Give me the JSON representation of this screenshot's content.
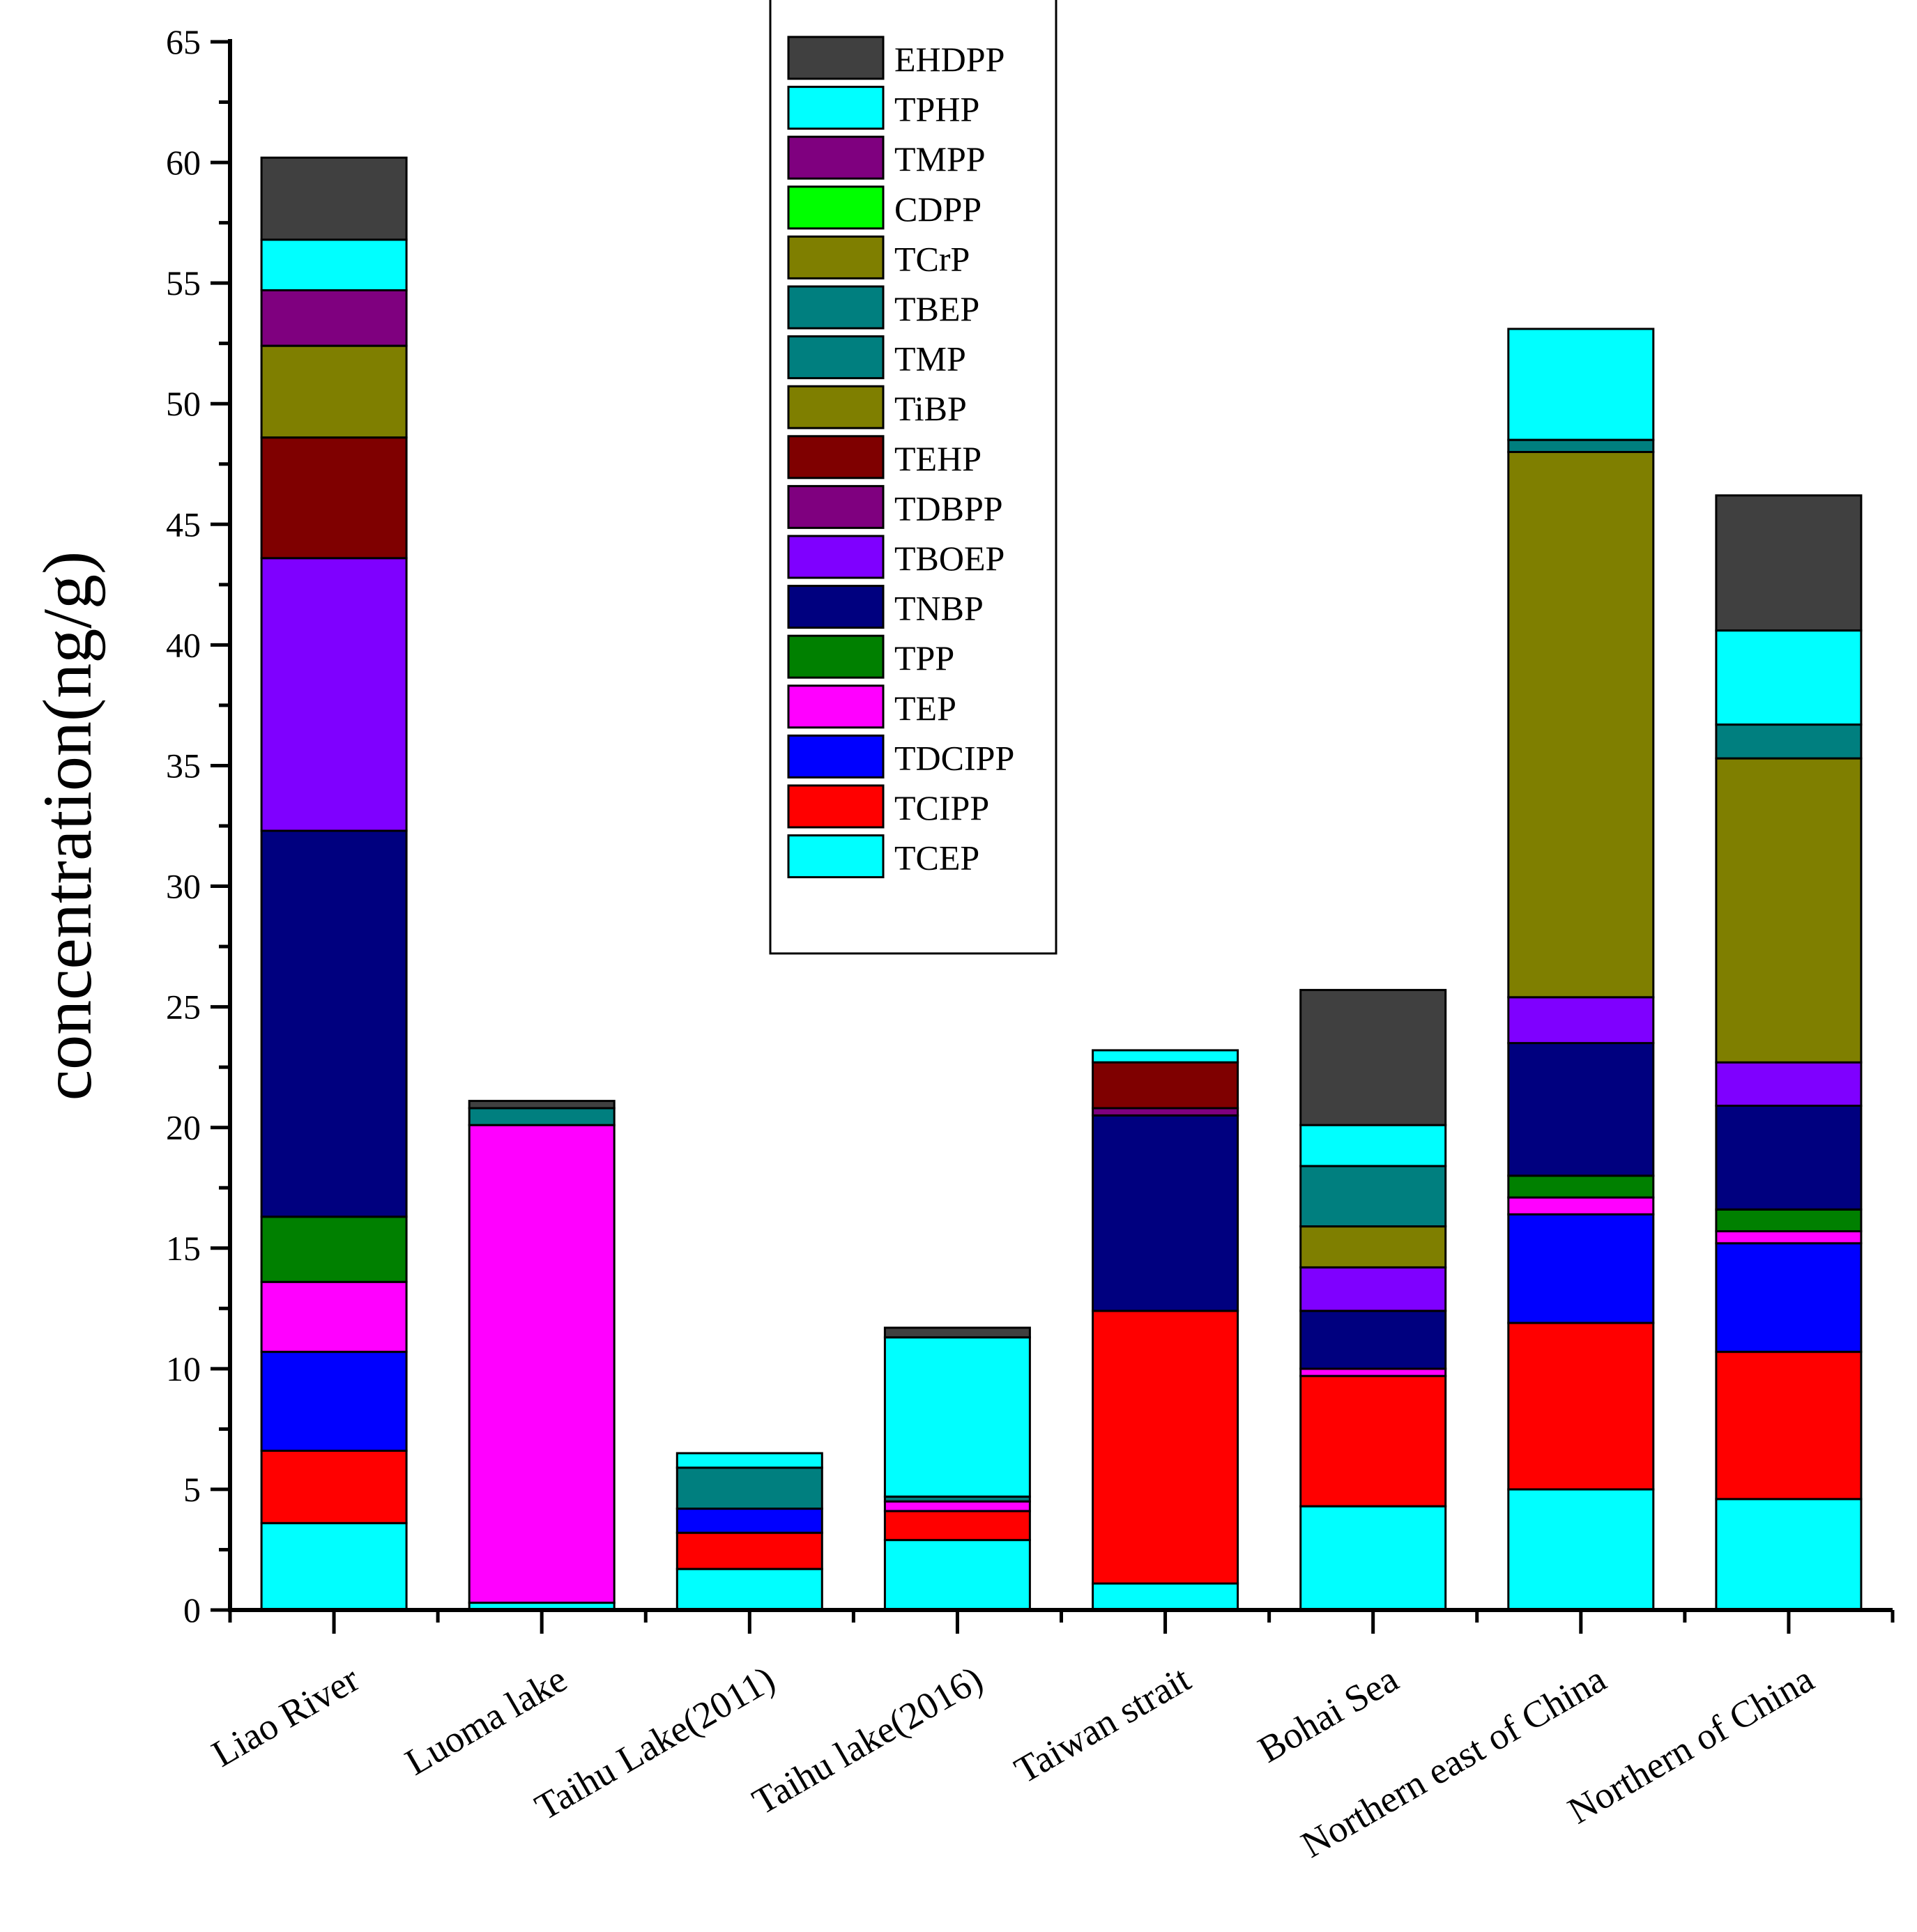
{
  "chart_data": {
    "type": "bar",
    "stacked": true,
    "title": "",
    "xlabel": "",
    "ylabel": "concentration(ng/g)",
    "ylim": [
      0,
      65
    ],
    "yticks": [
      "0",
      "5",
      "10",
      "15",
      "20",
      "25",
      "30",
      "35",
      "40",
      "45",
      "50",
      "55",
      "60",
      "65"
    ],
    "grid": false,
    "legend_position": "top-center",
    "categories": [
      "Liao River",
      "Luoma lake",
      "Taihu Lake(2011)",
      "Taihu lake(2016)",
      "Taiwan strait",
      "Bohai Sea",
      "Northern east of China",
      "Northern of China"
    ],
    "series": [
      {
        "name": "TCEP",
        "color": "#00FFFF",
        "values": [
          3.6,
          0.3,
          1.7,
          2.9,
          1.1,
          4.3,
          5.0,
          4.6
        ]
      },
      {
        "name": "TCIPP",
        "color": "#FF0000",
        "values": [
          3.0,
          0.0,
          1.5,
          1.2,
          11.3,
          5.4,
          6.9,
          6.1
        ]
      },
      {
        "name": "TDCIPP",
        "color": "#0000FF",
        "values": [
          4.1,
          0.0,
          1.0,
          0.0,
          0.0,
          0.0,
          4.5,
          4.5
        ]
      },
      {
        "name": "TEP",
        "color": "#FF00FF",
        "values": [
          2.9,
          19.8,
          0.0,
          0.4,
          0.0,
          0.3,
          0.7,
          0.5
        ]
      },
      {
        "name": "TPP",
        "color": "#008000",
        "values": [
          2.7,
          0.0,
          0.0,
          0.0,
          0.0,
          0.0,
          0.9,
          0.9
        ]
      },
      {
        "name": "TNBP",
        "color": "#00007F",
        "values": [
          16.0,
          0.0,
          0.0,
          0.0,
          8.1,
          2.4,
          5.5,
          4.3
        ]
      },
      {
        "name": "TBOEP",
        "color": "#7F00FF",
        "values": [
          11.3,
          0.0,
          0.0,
          0.0,
          0.0,
          1.8,
          1.9,
          1.8
        ]
      },
      {
        "name": "TDBPP",
        "color": "#7F007F",
        "values": [
          0.0,
          0.0,
          0.0,
          0.0,
          0.3,
          0.0,
          0.0,
          0.0
        ]
      },
      {
        "name": "TEHP",
        "color": "#7F0000",
        "values": [
          5.0,
          0.0,
          0.0,
          0.0,
          1.9,
          0.0,
          0.0,
          0.0
        ]
      },
      {
        "name": "TiBP",
        "color": "#7F7F00",
        "values": [
          3.8,
          0.0,
          0.0,
          0.0,
          0.0,
          1.7,
          22.6,
          12.6
        ]
      },
      {
        "name": "TMP",
        "color": "#007F7F",
        "values": [
          0.0,
          0.0,
          0.0,
          0.0,
          0.0,
          0.0,
          0.0,
          0.0
        ]
      },
      {
        "name": "TBEP",
        "color": "#007F7F",
        "values": [
          0.0,
          0.7,
          1.7,
          0.2,
          0.0,
          2.5,
          0.5,
          1.4
        ]
      },
      {
        "name": "TCrP",
        "color": "#7F7F00",
        "values": [
          0.0,
          0.0,
          0.0,
          0.0,
          0.0,
          0.0,
          0.0,
          0.0
        ]
      },
      {
        "name": "CDPP",
        "color": "#00FF00",
        "values": [
          0.0,
          0.0,
          0.0,
          0.0,
          0.0,
          0.0,
          0.0,
          0.0
        ]
      },
      {
        "name": "TMPP",
        "color": "#7F007F",
        "values": [
          2.3,
          0.0,
          0.0,
          0.0,
          0.0,
          0.0,
          0.0,
          0.0
        ]
      },
      {
        "name": "TPHP",
        "color": "#00FFFF",
        "values": [
          2.1,
          0.0,
          0.6,
          6.6,
          0.5,
          1.7,
          4.6,
          3.9
        ]
      },
      {
        "name": "EHDPP",
        "color": "#404040",
        "values": [
          3.4,
          0.3,
          0.0,
          0.4,
          0.0,
          5.6,
          0.0,
          5.6
        ]
      }
    ]
  }
}
